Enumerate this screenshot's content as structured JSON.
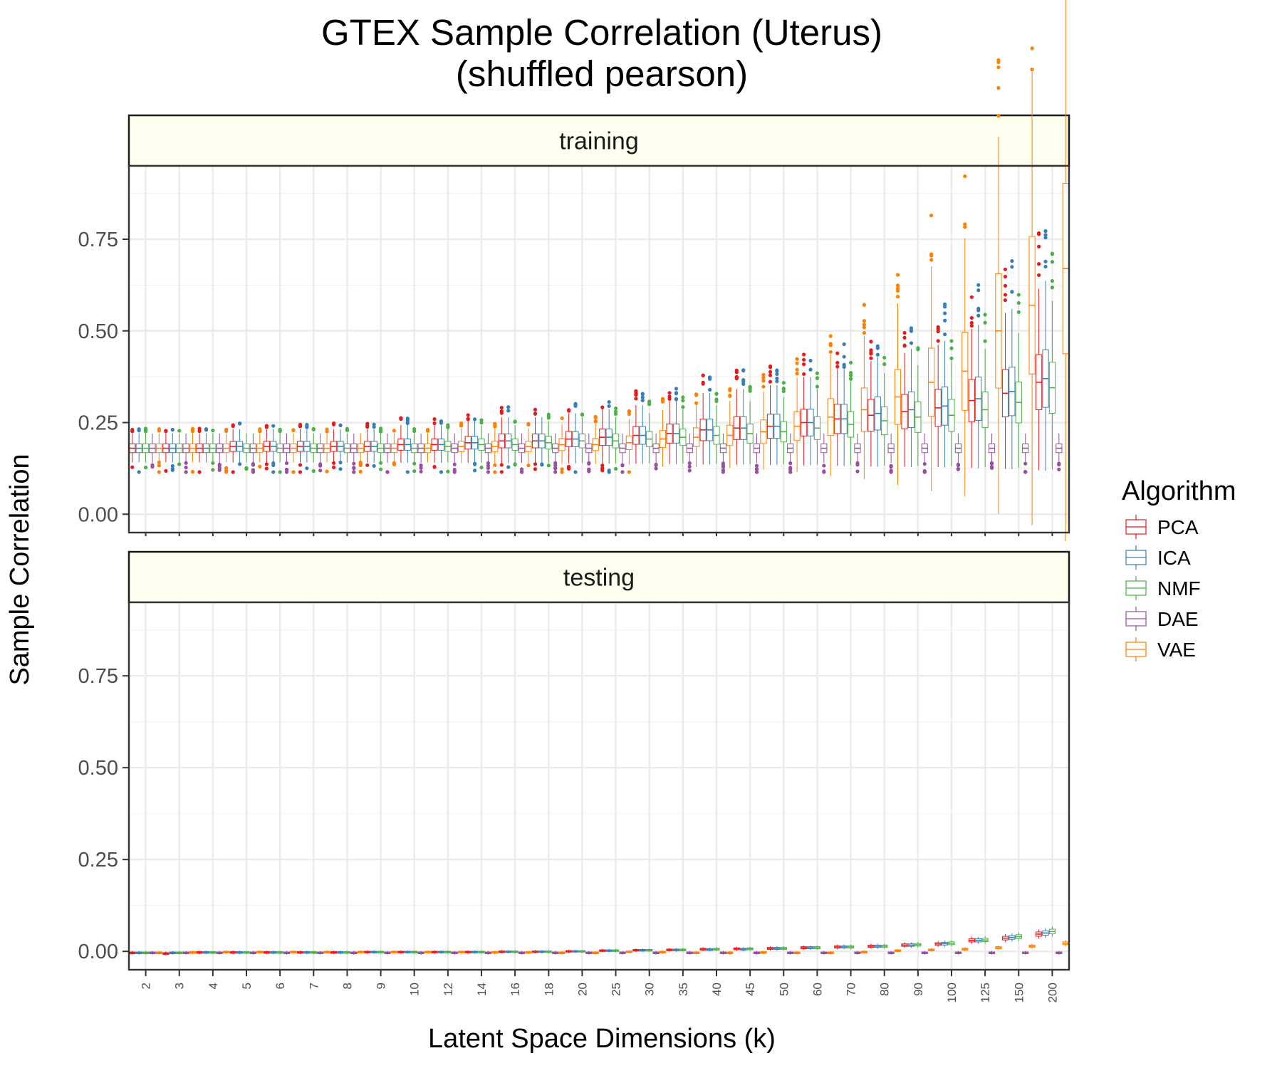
{
  "chart_data": {
    "type": "box",
    "title": "GTEX Sample Correlation (Uterus)",
    "subtitle": "(shuffled pearson)",
    "xlabel": "Latent Space Dimensions (k)",
    "ylabel": "Sample Correlation",
    "ylim": [
      -0.05,
      0.95
    ],
    "yticks": [
      0.0,
      0.25,
      0.5,
      0.75
    ],
    "ytick_labels": [
      "0.00",
      "0.25",
      "0.50",
      "0.75"
    ],
    "grid": true,
    "legend": {
      "title": "Algorithm",
      "position": "right",
      "entries": [
        {
          "name": "PCA",
          "color": "#e41a1c"
        },
        {
          "name": "ICA",
          "color": "#377eb8"
        },
        {
          "name": "NMF",
          "color": "#4daf4a"
        },
        {
          "name": "DAE",
          "color": "#984ea3"
        },
        {
          "name": "VAE",
          "color": "#ff7f00"
        }
      ]
    },
    "categories": [
      "2",
      "3",
      "4",
      "5",
      "6",
      "7",
      "8",
      "9",
      "10",
      "12",
      "14",
      "16",
      "18",
      "20",
      "25",
      "30",
      "35",
      "40",
      "45",
      "50",
      "60",
      "70",
      "80",
      "90",
      "100",
      "125",
      "150",
      "200"
    ],
    "panels": [
      {
        "name": "training",
        "series": [
          {
            "name": "PCA",
            "median": [
              0.18,
              0.18,
              0.18,
              0.185,
              0.185,
              0.185,
              0.185,
              0.185,
              0.19,
              0.19,
              0.195,
              0.2,
              0.2,
              0.205,
              0.21,
              0.215,
              0.22,
              0.23,
              0.235,
              0.24,
              0.25,
              0.26,
              0.27,
              0.28,
              0.29,
              0.31,
              0.33,
              0.36
            ]
          },
          {
            "name": "ICA",
            "median": [
              0.18,
              0.18,
              0.18,
              0.185,
              0.185,
              0.185,
              0.185,
              0.185,
              0.19,
              0.19,
              0.195,
              0.2,
              0.2,
              0.205,
              0.21,
              0.215,
              0.22,
              0.23,
              0.235,
              0.24,
              0.25,
              0.26,
              0.275,
              0.285,
              0.295,
              0.315,
              0.335,
              0.37
            ]
          },
          {
            "name": "NMF",
            "median": [
              0.18,
              0.18,
              0.18,
              0.18,
              0.18,
              0.18,
              0.18,
              0.18,
              0.18,
              0.185,
              0.19,
              0.19,
              0.195,
              0.2,
              0.2,
              0.205,
              0.21,
              0.215,
              0.22,
              0.225,
              0.235,
              0.245,
              0.255,
              0.265,
              0.27,
              0.285,
              0.305,
              0.345
            ]
          },
          {
            "name": "DAE",
            "median": [
              0.18,
              0.18,
              0.18,
              0.18,
              0.18,
              0.18,
              0.18,
              0.18,
              0.18,
              0.18,
              0.18,
              0.18,
              0.18,
              0.18,
              0.18,
              0.18,
              0.18,
              0.18,
              0.18,
              0.18,
              0.18,
              0.18,
              0.18,
              0.18,
              0.18,
              0.18,
              0.18,
              0.18
            ]
          },
          {
            "name": "VAE",
            "median": [
              0.18,
              0.18,
              0.18,
              0.18,
              0.18,
              0.18,
              0.18,
              0.18,
              0.18,
              0.185,
              0.185,
              0.185,
              0.19,
              0.19,
              0.195,
              0.205,
              0.21,
              0.215,
              0.225,
              0.24,
              0.265,
              0.285,
              0.32,
              0.36,
              0.39,
              0.5,
              0.57,
              0.67
            ]
          }
        ]
      },
      {
        "name": "testing",
        "series": [
          {
            "name": "PCA",
            "median": [
              -0.004,
              -0.006,
              -0.003,
              -0.003,
              -0.003,
              -0.003,
              -0.003,
              -0.002,
              -0.002,
              -0.002,
              -0.002,
              -0.001,
              -0.001,
              0,
              0.002,
              0.003,
              0.004,
              0.006,
              0.007,
              0.008,
              0.01,
              0.012,
              0.014,
              0.017,
              0.02,
              0.03,
              0.036,
              0.047
            ]
          },
          {
            "name": "ICA",
            "median": [
              -0.004,
              -0.004,
              -0.003,
              -0.003,
              -0.003,
              -0.003,
              -0.003,
              -0.002,
              -0.002,
              -0.002,
              -0.002,
              -0.001,
              -0.001,
              0,
              0.002,
              0.003,
              0.004,
              0.005,
              0.006,
              0.008,
              0.01,
              0.012,
              0.014,
              0.017,
              0.021,
              0.03,
              0.038,
              0.05
            ]
          },
          {
            "name": "NMF",
            "median": [
              -0.004,
              -0.004,
              -0.003,
              -0.003,
              -0.003,
              -0.003,
              -0.003,
              -0.002,
              -0.002,
              -0.002,
              -0.002,
              -0.001,
              -0.001,
              0,
              0.002,
              0.003,
              0.004,
              0.006,
              0.007,
              0.008,
              0.01,
              0.012,
              0.014,
              0.018,
              0.022,
              0.031,
              0.04,
              0.054
            ]
          },
          {
            "name": "DAE",
            "median": [
              -0.004,
              -0.004,
              -0.004,
              -0.004,
              -0.004,
              -0.004,
              -0.004,
              -0.004,
              -0.004,
              -0.004,
              -0.004,
              -0.004,
              -0.004,
              -0.004,
              -0.004,
              -0.004,
              -0.004,
              -0.004,
              -0.004,
              -0.004,
              -0.004,
              -0.004,
              -0.004,
              -0.004,
              -0.004,
              -0.004,
              -0.004,
              -0.004
            ]
          },
          {
            "name": "VAE",
            "median": [
              -0.004,
              -0.003,
              -0.002,
              -0.002,
              -0.002,
              -0.002,
              -0.002,
              -0.002,
              -0.002,
              -0.002,
              -0.003,
              -0.003,
              -0.004,
              -0.004,
              -0.001,
              -0.002,
              -0.004,
              -0.004,
              -0.003,
              -0.004,
              -0.004,
              -0.002,
              0.002,
              0.004,
              0.006,
              0.01,
              0.014,
              0.022
            ]
          }
        ]
      }
    ]
  }
}
